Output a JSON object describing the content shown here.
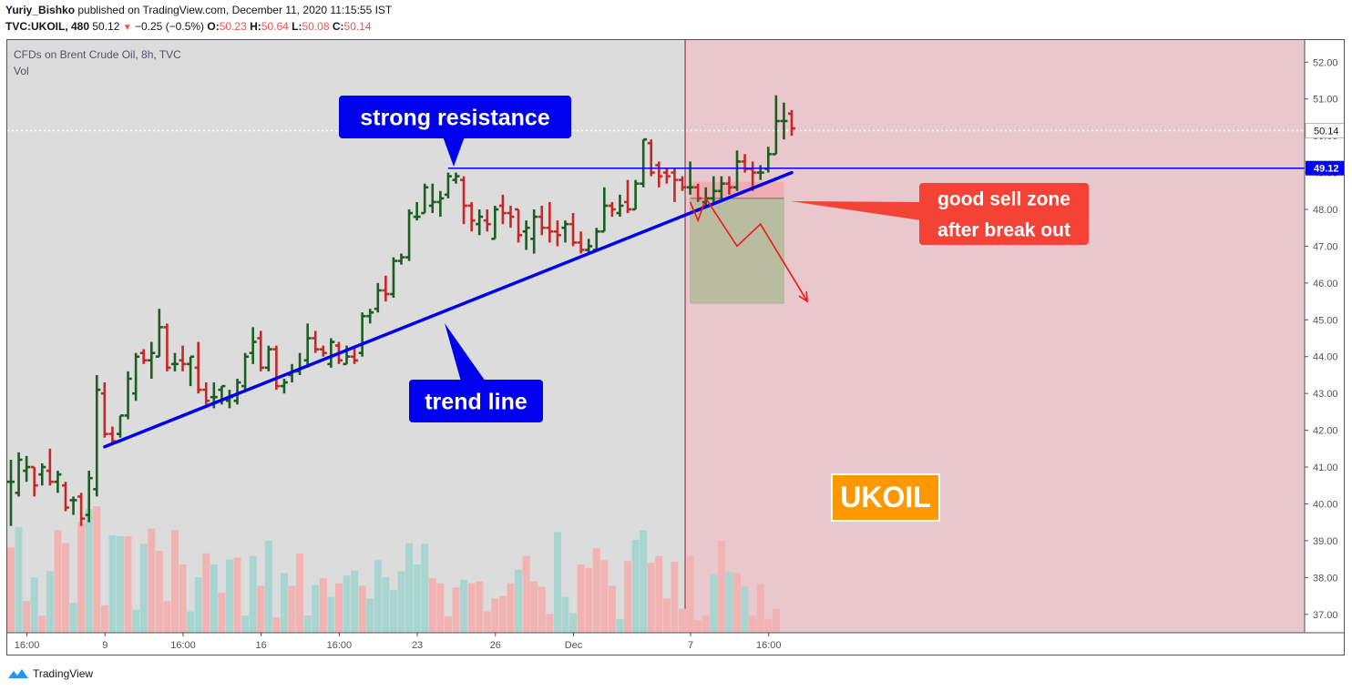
{
  "header": {
    "author": "Yuriy_Bishko",
    "published_text": "published on TradingView.com, December 11, 2020 11:15:55 IST",
    "symbol": "TVC:UKOIL, 480",
    "last": "50.12",
    "change": "−0.25 (−0.5%)",
    "o_label": "O:",
    "o_value": "50.23",
    "h_label": "H:",
    "h_value": "50.64",
    "l_label": "L:",
    "l_value": "50.08",
    "c_label": "C:",
    "c_value": "50.14"
  },
  "legend": {
    "title": "CFDs on Brent Crude Oil, 8h, TVC",
    "volume_label": "Vol"
  },
  "footer": {
    "brand": "TradingView"
  },
  "colors": {
    "up": "#1b5e20",
    "down": "#c62828",
    "vol_up": "#a8d5d0",
    "vol_down": "#f2b3b3",
    "zone": "#e8c8cc",
    "pane_bg": "#dcdcdc",
    "resistance": "#0000ff",
    "trendline": "#0000ee",
    "callout_blue": "#0000ee",
    "callout_red": "#f44336",
    "ukoil_bg": "#ff9800"
  },
  "chart_data": {
    "type": "ohlc",
    "ylim": [
      36.5,
      52.6
    ],
    "y_ticks": [
      "52.00",
      "51.00",
      "50.00",
      "49.00",
      "48.00",
      "47.00",
      "46.00",
      "45.00",
      "44.00",
      "43.00",
      "42.00",
      "41.00",
      "40.00",
      "39.00",
      "38.00",
      "37.00"
    ],
    "x_ticks": [
      {
        "label": "16:00",
        "bar": 1
      },
      {
        "label": "9",
        "bar": 11
      },
      {
        "label": "16:00",
        "bar": 21
      },
      {
        "label": "16",
        "bar": 31
      },
      {
        "label": "16:00",
        "bar": 41
      },
      {
        "label": "23",
        "bar": 51
      },
      {
        "label": "26",
        "bar": 61
      },
      {
        "label": "Dec",
        "bar": 71
      },
      {
        "label": "7",
        "bar": 86
      },
      {
        "label": "16:00",
        "bar": 96
      }
    ],
    "bars": [
      {
        "o": 40.6,
        "h": 41.2,
        "l": 39.4,
        "c": 40.6
      },
      {
        "o": 40.3,
        "h": 41.4,
        "l": 40.2,
        "c": 41.2
      },
      {
        "o": 40.9,
        "h": 41.3,
        "l": 40.6,
        "c": 41.0
      },
      {
        "o": 41.0,
        "h": 41.0,
        "l": 40.2,
        "c": 40.5
      },
      {
        "o": 40.8,
        "h": 41.1,
        "l": 40.5,
        "c": 41.0
      },
      {
        "o": 40.9,
        "h": 41.5,
        "l": 40.5,
        "c": 40.6
      },
      {
        "o": 40.6,
        "h": 40.9,
        "l": 40.3,
        "c": 40.8
      },
      {
        "o": 40.5,
        "h": 40.6,
        "l": 39.8,
        "c": 39.9
      },
      {
        "o": 40.1,
        "h": 40.2,
        "l": 39.7,
        "c": 40.1
      },
      {
        "o": 40.2,
        "h": 40.3,
        "l": 39.4,
        "c": 39.6
      },
      {
        "o": 39.7,
        "h": 40.9,
        "l": 39.5,
        "c": 40.7
      },
      {
        "o": 40.4,
        "h": 43.5,
        "l": 40.2,
        "c": 43.1
      },
      {
        "o": 43.0,
        "h": 43.3,
        "l": 41.8,
        "c": 41.9
      },
      {
        "o": 41.9,
        "h": 42.1,
        "l": 41.6,
        "c": 41.7
      },
      {
        "o": 41.9,
        "h": 42.4,
        "l": 41.8,
        "c": 42.4
      },
      {
        "o": 42.4,
        "h": 43.6,
        "l": 42.3,
        "c": 43.4
      },
      {
        "o": 43.0,
        "h": 44.1,
        "l": 42.8,
        "c": 44.0
      },
      {
        "o": 44.1,
        "h": 44.2,
        "l": 43.8,
        "c": 43.9
      },
      {
        "o": 43.9,
        "h": 44.4,
        "l": 43.4,
        "c": 44.1
      },
      {
        "o": 44.0,
        "h": 45.3,
        "l": 44.0,
        "c": 44.8
      },
      {
        "o": 44.8,
        "h": 44.9,
        "l": 43.6,
        "c": 43.7
      },
      {
        "o": 43.8,
        "h": 44.1,
        "l": 43.6,
        "c": 43.8
      },
      {
        "o": 43.9,
        "h": 44.3,
        "l": 43.6,
        "c": 43.8
      },
      {
        "o": 43.8,
        "h": 44.0,
        "l": 43.2,
        "c": 44.0
      },
      {
        "o": 43.7,
        "h": 44.4,
        "l": 43.0,
        "c": 43.1
      },
      {
        "o": 43.1,
        "h": 43.3,
        "l": 42.7,
        "c": 42.8
      },
      {
        "o": 42.9,
        "h": 43.3,
        "l": 42.6,
        "c": 42.9
      },
      {
        "o": 43.1,
        "h": 43.2,
        "l": 42.7,
        "c": 43.2
      },
      {
        "o": 42.8,
        "h": 43.1,
        "l": 42.6,
        "c": 42.9
      },
      {
        "o": 42.8,
        "h": 43.4,
        "l": 42.7,
        "c": 43.3
      },
      {
        "o": 43.2,
        "h": 44.1,
        "l": 43.1,
        "c": 44.0
      },
      {
        "o": 44.1,
        "h": 44.8,
        "l": 43.8,
        "c": 44.4
      },
      {
        "o": 44.5,
        "h": 44.7,
        "l": 43.6,
        "c": 43.7
      },
      {
        "o": 43.7,
        "h": 44.3,
        "l": 43.6,
        "c": 44.2
      },
      {
        "o": 44.2,
        "h": 44.3,
        "l": 43.1,
        "c": 43.2
      },
      {
        "o": 43.2,
        "h": 43.4,
        "l": 43.0,
        "c": 43.3
      },
      {
        "o": 43.5,
        "h": 43.8,
        "l": 43.3,
        "c": 43.6
      },
      {
        "o": 43.6,
        "h": 44.1,
        "l": 43.5,
        "c": 43.7
      },
      {
        "o": 43.9,
        "h": 44.9,
        "l": 43.7,
        "c": 44.5
      },
      {
        "o": 44.5,
        "h": 44.7,
        "l": 44.1,
        "c": 44.2
      },
      {
        "o": 44.2,
        "h": 44.3,
        "l": 44.0,
        "c": 44.1
      },
      {
        "o": 43.8,
        "h": 44.5,
        "l": 43.7,
        "c": 44.4
      },
      {
        "o": 44.3,
        "h": 44.4,
        "l": 43.8,
        "c": 43.9
      },
      {
        "o": 43.8,
        "h": 44.3,
        "l": 43.8,
        "c": 44.0
      },
      {
        "o": 44.0,
        "h": 44.3,
        "l": 43.8,
        "c": 43.9
      },
      {
        "o": 44.1,
        "h": 45.2,
        "l": 44.0,
        "c": 45.1
      },
      {
        "o": 45.1,
        "h": 45.3,
        "l": 44.9,
        "c": 45.2
      },
      {
        "o": 45.3,
        "h": 46.0,
        "l": 45.2,
        "c": 45.8
      },
      {
        "o": 45.8,
        "h": 46.2,
        "l": 45.5,
        "c": 45.7
      },
      {
        "o": 45.7,
        "h": 46.7,
        "l": 45.6,
        "c": 46.6
      },
      {
        "o": 46.6,
        "h": 46.8,
        "l": 46.5,
        "c": 46.7
      },
      {
        "o": 46.7,
        "h": 48.0,
        "l": 46.6,
        "c": 47.9
      },
      {
        "o": 47.8,
        "h": 48.2,
        "l": 47.7,
        "c": 47.8
      },
      {
        "o": 47.9,
        "h": 48.7,
        "l": 47.9,
        "c": 48.6
      },
      {
        "o": 48.1,
        "h": 48.7,
        "l": 47.9,
        "c": 48.2
      },
      {
        "o": 48.2,
        "h": 48.5,
        "l": 47.8,
        "c": 48.3
      },
      {
        "o": 48.4,
        "h": 49.0,
        "l": 48.3,
        "c": 48.9
      },
      {
        "o": 48.8,
        "h": 49.0,
        "l": 48.7,
        "c": 48.9
      },
      {
        "o": 48.8,
        "h": 48.9,
        "l": 47.6,
        "c": 48.1
      },
      {
        "o": 48.1,
        "h": 48.2,
        "l": 47.4,
        "c": 47.7
      },
      {
        "o": 47.6,
        "h": 48.0,
        "l": 47.3,
        "c": 47.8
      },
      {
        "o": 47.7,
        "h": 48.0,
        "l": 47.4,
        "c": 47.6
      },
      {
        "o": 47.2,
        "h": 48.1,
        "l": 47.2,
        "c": 48.0
      },
      {
        "o": 48.1,
        "h": 48.4,
        "l": 47.6,
        "c": 47.9
      },
      {
        "o": 47.9,
        "h": 48.1,
        "l": 47.5,
        "c": 47.8
      },
      {
        "o": 48.0,
        "h": 48.0,
        "l": 47.1,
        "c": 47.3
      },
      {
        "o": 47.4,
        "h": 47.7,
        "l": 46.9,
        "c": 47.5
      },
      {
        "o": 47.2,
        "h": 48.0,
        "l": 46.8,
        "c": 47.8
      },
      {
        "o": 47.8,
        "h": 48.1,
        "l": 47.3,
        "c": 47.5
      },
      {
        "o": 47.5,
        "h": 48.2,
        "l": 47.1,
        "c": 47.4
      },
      {
        "o": 47.4,
        "h": 47.7,
        "l": 47.0,
        "c": 47.3
      },
      {
        "o": 47.5,
        "h": 47.7,
        "l": 47.1,
        "c": 47.6
      },
      {
        "o": 47.6,
        "h": 47.9,
        "l": 47.0,
        "c": 47.1
      },
      {
        "o": 47.1,
        "h": 47.4,
        "l": 46.8,
        "c": 46.9
      },
      {
        "o": 46.9,
        "h": 47.2,
        "l": 46.8,
        "c": 47.0
      },
      {
        "o": 46.9,
        "h": 47.5,
        "l": 46.9,
        "c": 47.4
      },
      {
        "o": 47.4,
        "h": 48.6,
        "l": 47.4,
        "c": 48.1
      },
      {
        "o": 48.1,
        "h": 48.2,
        "l": 47.8,
        "c": 48.0
      },
      {
        "o": 47.9,
        "h": 48.4,
        "l": 47.8,
        "c": 48.1
      },
      {
        "o": 48.2,
        "h": 48.8,
        "l": 47.9,
        "c": 48.0
      },
      {
        "o": 48.0,
        "h": 48.8,
        "l": 48.0,
        "c": 48.7
      },
      {
        "o": 48.7,
        "h": 49.9,
        "l": 48.6,
        "c": 49.9
      },
      {
        "o": 49.8,
        "h": 49.9,
        "l": 48.9,
        "c": 49.0
      },
      {
        "o": 49.2,
        "h": 49.3,
        "l": 48.6,
        "c": 48.9
      },
      {
        "o": 49.0,
        "h": 49.1,
        "l": 48.7,
        "c": 48.9
      },
      {
        "o": 49.0,
        "h": 49.1,
        "l": 48.2,
        "c": 48.8
      },
      {
        "o": 48.8,
        "h": 48.9,
        "l": 48.5,
        "c": 48.6
      },
      {
        "o": 48.6,
        "h": 49.3,
        "l": 48.4,
        "c": 48.6
      },
      {
        "o": 48.6,
        "h": 48.7,
        "l": 48.2,
        "c": 48.3
      },
      {
        "o": 48.2,
        "h": 48.6,
        "l": 48.1,
        "c": 48.3
      },
      {
        "o": 48.3,
        "h": 48.9,
        "l": 48.2,
        "c": 48.5
      },
      {
        "o": 48.5,
        "h": 48.9,
        "l": 48.2,
        "c": 48.7
      },
      {
        "o": 48.7,
        "h": 48.9,
        "l": 48.4,
        "c": 48.6
      },
      {
        "o": 48.6,
        "h": 49.6,
        "l": 48.5,
        "c": 49.3
      },
      {
        "o": 49.3,
        "h": 49.5,
        "l": 49.0,
        "c": 49.1
      },
      {
        "o": 49.1,
        "h": 49.3,
        "l": 48.5,
        "c": 49.0
      },
      {
        "o": 49.0,
        "h": 49.2,
        "l": 48.8,
        "c": 49.0
      },
      {
        "o": 49.1,
        "h": 49.7,
        "l": 49.0,
        "c": 49.5
      },
      {
        "o": 49.5,
        "h": 51.1,
        "l": 49.5,
        "c": 50.4
      },
      {
        "o": 50.4,
        "h": 50.9,
        "l": 49.9,
        "c": 50.4
      },
      {
        "o": 50.6,
        "h": 50.7,
        "l": 50.0,
        "c": 50.2
      }
    ],
    "volume": [
      {
        "v": 100,
        "up": false
      },
      {
        "v": 124,
        "up": true
      },
      {
        "v": 37,
        "up": false
      },
      {
        "v": 65,
        "up": true
      },
      {
        "v": 20,
        "up": false
      },
      {
        "v": 72,
        "up": true
      },
      {
        "v": 120,
        "up": false
      },
      {
        "v": 105,
        "up": false
      },
      {
        "v": 35,
        "up": true
      },
      {
        "v": 130,
        "up": false
      },
      {
        "v": 145,
        "up": true
      },
      {
        "v": 148,
        "up": false
      },
      {
        "v": 32,
        "up": false
      },
      {
        "v": 114,
        "up": true
      },
      {
        "v": 113,
        "up": true
      },
      {
        "v": 113,
        "up": false
      },
      {
        "v": 27,
        "up": true
      },
      {
        "v": 104,
        "up": true
      },
      {
        "v": 122,
        "up": false
      },
      {
        "v": 96,
        "up": false
      },
      {
        "v": 37,
        "up": false
      },
      {
        "v": 120,
        "up": false
      },
      {
        "v": 80,
        "up": false
      },
      {
        "v": 25,
        "up": true
      },
      {
        "v": 65,
        "up": true
      },
      {
        "v": 93,
        "up": false
      },
      {
        "v": 80,
        "up": true
      },
      {
        "v": 47,
        "up": false
      },
      {
        "v": 86,
        "up": true
      },
      {
        "v": 88,
        "up": false
      },
      {
        "v": 20,
        "up": true
      },
      {
        "v": 90,
        "up": true
      },
      {
        "v": 55,
        "up": false
      },
      {
        "v": 108,
        "up": true
      },
      {
        "v": 18,
        "up": false
      },
      {
        "v": 70,
        "up": true
      },
      {
        "v": 55,
        "up": false
      },
      {
        "v": 93,
        "up": false
      },
      {
        "v": 20,
        "up": true
      },
      {
        "v": 56,
        "up": true
      },
      {
        "v": 64,
        "up": false
      },
      {
        "v": 42,
        "up": true
      },
      {
        "v": 58,
        "up": false
      },
      {
        "v": 67,
        "up": true
      },
      {
        "v": 73,
        "up": true
      },
      {
        "v": 55,
        "up": false
      },
      {
        "v": 40,
        "up": true
      },
      {
        "v": 85,
        "up": true
      },
      {
        "v": 65,
        "up": true
      },
      {
        "v": 50,
        "up": true
      },
      {
        "v": 72,
        "up": true
      },
      {
        "v": 105,
        "up": true
      },
      {
        "v": 80,
        "up": true
      },
      {
        "v": 104,
        "up": true
      },
      {
        "v": 64,
        "up": false
      },
      {
        "v": 58,
        "up": false
      },
      {
        "v": 19,
        "up": false
      },
      {
        "v": 53,
        "up": false
      },
      {
        "v": 62,
        "up": true
      },
      {
        "v": 58,
        "up": false
      },
      {
        "v": 60,
        "up": false
      },
      {
        "v": 25,
        "up": false
      },
      {
        "v": 40,
        "up": false
      },
      {
        "v": 43,
        "up": false
      },
      {
        "v": 58,
        "up": false
      },
      {
        "v": 74,
        "up": true
      },
      {
        "v": 90,
        "up": false
      },
      {
        "v": 60,
        "up": false
      },
      {
        "v": 54,
        "up": false
      },
      {
        "v": 22,
        "up": false
      },
      {
        "v": 118,
        "up": true
      },
      {
        "v": 42,
        "up": true
      },
      {
        "v": 23,
        "up": true
      },
      {
        "v": 80,
        "up": false
      },
      {
        "v": 76,
        "up": false
      },
      {
        "v": 99,
        "up": false
      },
      {
        "v": 85,
        "up": false
      },
      {
        "v": 55,
        "up": false
      },
      {
        "v": 16,
        "up": true
      },
      {
        "v": 84,
        "up": false
      },
      {
        "v": 109,
        "up": true
      },
      {
        "v": 120,
        "up": true
      },
      {
        "v": 82,
        "up": false
      },
      {
        "v": 90,
        "up": false
      },
      {
        "v": 40,
        "up": false
      },
      {
        "v": 83,
        "up": false
      },
      {
        "v": 28,
        "up": false
      },
      {
        "v": 90,
        "up": false
      },
      {
        "v": 15,
        "up": false
      },
      {
        "v": 20,
        "up": false
      },
      {
        "v": 68,
        "up": true
      },
      {
        "v": 108,
        "up": false
      },
      {
        "v": 71,
        "up": true
      },
      {
        "v": 70,
        "up": false
      },
      {
        "v": 54,
        "up": true
      },
      {
        "v": 20,
        "up": false
      },
      {
        "v": 57,
        "up": false
      },
      {
        "v": 16,
        "up": false
      },
      {
        "v": 28,
        "up": false
      }
    ],
    "resistance": {
      "price": 49.12,
      "label": "49.12",
      "start_bar": 56
    },
    "last_price": {
      "price": 50.14,
      "label": "50.14"
    },
    "trend_line": {
      "x1_bar": 12,
      "y1": 41.55,
      "x2_bar": 100,
      "y2": 49.0
    },
    "sell_zone": {
      "start_bar": 87,
      "stop_top": 48.75,
      "entry": 48.3,
      "target": 45.45,
      "end_bar": 99
    },
    "projection": [
      {
        "bar": 87,
        "price": 48.2
      },
      {
        "bar": 88,
        "price": 47.7
      },
      {
        "bar": 89,
        "price": 48.3
      },
      {
        "bar": 93,
        "price": 47.0
      },
      {
        "bar": 96,
        "price": 47.6
      },
      {
        "bar": 102,
        "price": 45.5
      }
    ],
    "event_bar": 86,
    "annotations": {
      "resistance_callout": "strong resistance",
      "trend_callout": "trend line",
      "sell_callout_line1": "good sell zone",
      "sell_callout_line2": "after break out",
      "symbol_badge": "UKOIL"
    }
  }
}
